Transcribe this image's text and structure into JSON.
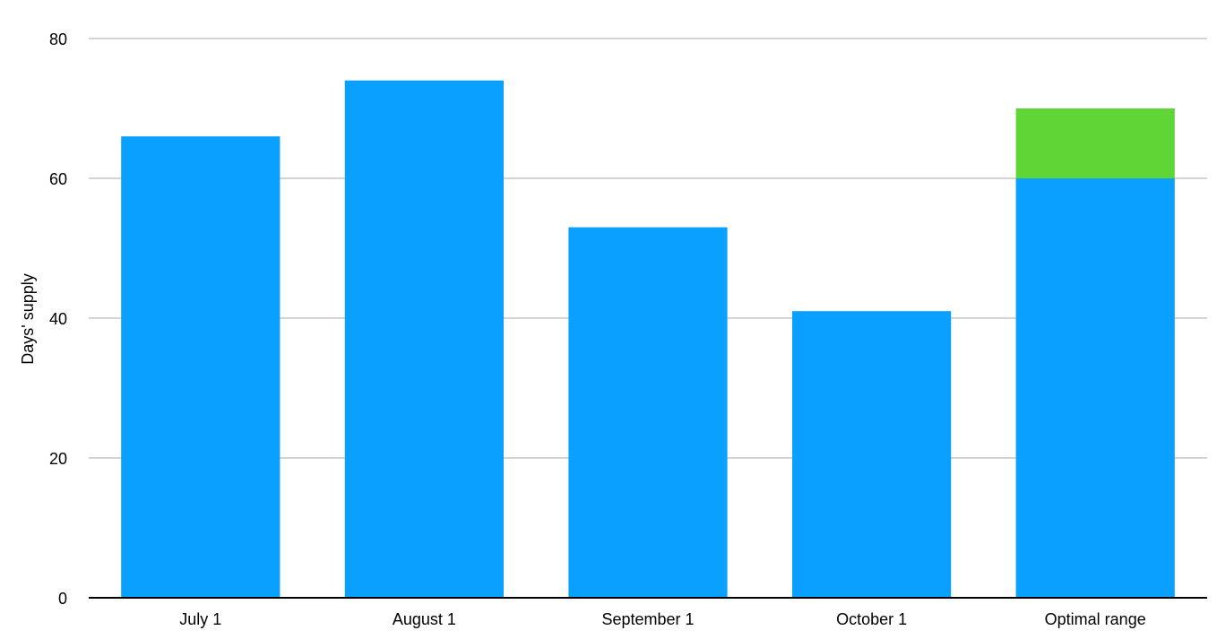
{
  "chart_data": {
    "type": "bar",
    "stacked": true,
    "title": "",
    "xlabel": "",
    "ylabel": "Days' supply",
    "ylim": [
      0,
      80
    ],
    "yticks": [
      0,
      20,
      40,
      60,
      80
    ],
    "grid": true,
    "legend": "none",
    "categories": [
      "July 1",
      "August 1",
      "September 1",
      "October 1",
      "Optimal range"
    ],
    "series": [
      {
        "values": [
          66,
          74,
          53,
          41,
          60
        ],
        "color": "#0aa0ff"
      },
      {
        "values": [
          0,
          0,
          0,
          0,
          10
        ],
        "color": "#5fd636"
      }
    ],
    "colors": {
      "gridline": "#c6c6c6",
      "axis": "#000000"
    }
  }
}
